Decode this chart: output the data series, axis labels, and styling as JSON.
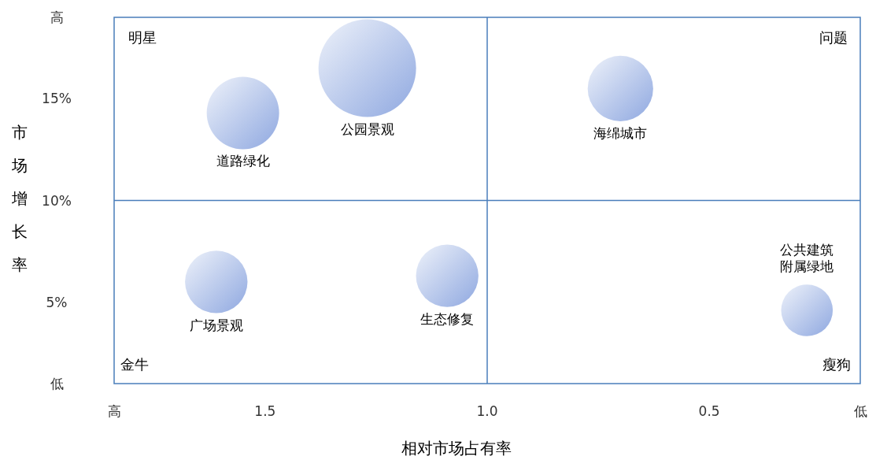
{
  "chart_data": {
    "type": "bubble",
    "xlabel": "相对市场占有率",
    "ylabel": "市场增长率",
    "xlim": [
      1.84,
      0.16
    ],
    "ylim": [
      1,
      19
    ],
    "xticks": [
      {
        "value": 1.84,
        "label": "高"
      },
      1.5,
      {
        "value": 1,
        "label": "1.0"
      },
      0.5,
      {
        "value": 0.16,
        "label": "低"
      }
    ],
    "yticks": [
      {
        "value": 1,
        "label": "低"
      },
      {
        "value": 5,
        "label": "5%"
      },
      {
        "value": 10,
        "label": "10%"
      },
      {
        "value": 15,
        "label": "15%"
      },
      {
        "value": 19,
        "label": "高"
      }
    ],
    "ref_lines": [
      {
        "axis": "x",
        "value": 1,
        "color": "#4a7ebb"
      },
      {
        "axis": "y",
        "value": 10,
        "color": "#4a7ebb"
      }
    ],
    "annotations": [
      "明星",
      "问题",
      "金牛",
      "瘦狗"
    ],
    "series": [
      {
        "name": "道路绿化",
        "color": "#8fa8e0",
        "x": [
          1.55
        ],
        "values": [
          14.3
        ],
        "sizes": [
          0.55
        ]
      },
      {
        "name": "公园景观",
        "color": "#8fa8e0",
        "x": [
          1.27
        ],
        "values": [
          16.5
        ],
        "sizes": [
          1
        ]
      },
      {
        "name": "海绵城市",
        "color": "#8fa8e0",
        "x": [
          0.7
        ],
        "values": [
          15.5
        ],
        "sizes": [
          0.45
        ]
      },
      {
        "name": "广场景观",
        "color": "#8fa8e0",
        "x": [
          1.61
        ],
        "values": [
          6.0
        ],
        "sizes": [
          0.41
        ]
      },
      {
        "name": "生态修复",
        "color": "#8fa8e0",
        "x": [
          1.09
        ],
        "values": [
          6.3
        ],
        "sizes": [
          0.41
        ]
      },
      {
        "name": "公共建筑附属绿地",
        "color": "#8fa8e0",
        "x": [
          0.28
        ],
        "values": [
          4.6
        ],
        "sizes": [
          0.28
        ]
      }
    ]
  }
}
